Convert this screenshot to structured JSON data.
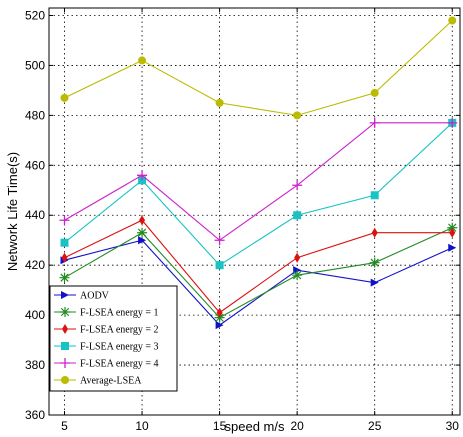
{
  "chart_data": {
    "type": "line",
    "title": "",
    "xlabel": "speed m/s",
    "ylabel": "Network Life Time(s)",
    "x": [
      5,
      10,
      15,
      20,
      25,
      30
    ],
    "xticks": [
      5,
      10,
      15,
      20,
      25,
      30
    ],
    "yticks": [
      360,
      380,
      400,
      420,
      440,
      460,
      480,
      500,
      520
    ],
    "xlim": [
      4,
      30.5
    ],
    "ylim": [
      360,
      523
    ],
    "grid": true,
    "legend_position": "bottom-left",
    "series": [
      {
        "name": "AODV",
        "color": "#1111cc",
        "marker": "triangle-right",
        "values": [
          422,
          430,
          396,
          418,
          413,
          427
        ]
      },
      {
        "name": "F-LSEA energy = 1",
        "color": "#228b22",
        "marker": "star",
        "values": [
          415,
          433,
          399,
          416,
          421,
          435
        ]
      },
      {
        "name": "F-LSEA energy = 2",
        "color": "#dd1111",
        "marker": "diamond",
        "values": [
          423,
          438,
          401,
          423,
          433,
          433
        ]
      },
      {
        "name": "F-LSEA energy = 3",
        "color": "#17c3c3",
        "marker": "square",
        "values": [
          429,
          454,
          420,
          440,
          448,
          477
        ]
      },
      {
        "name": "F-LSEA energy = 4",
        "color": "#cc22cc",
        "marker": "plus",
        "values": [
          438,
          456,
          430,
          452,
          477,
          477
        ]
      },
      {
        "name": "Average-LSEA",
        "color": "#bbbb00",
        "marker": "circle",
        "values": [
          487,
          502,
          485,
          480,
          489,
          518
        ]
      }
    ]
  }
}
